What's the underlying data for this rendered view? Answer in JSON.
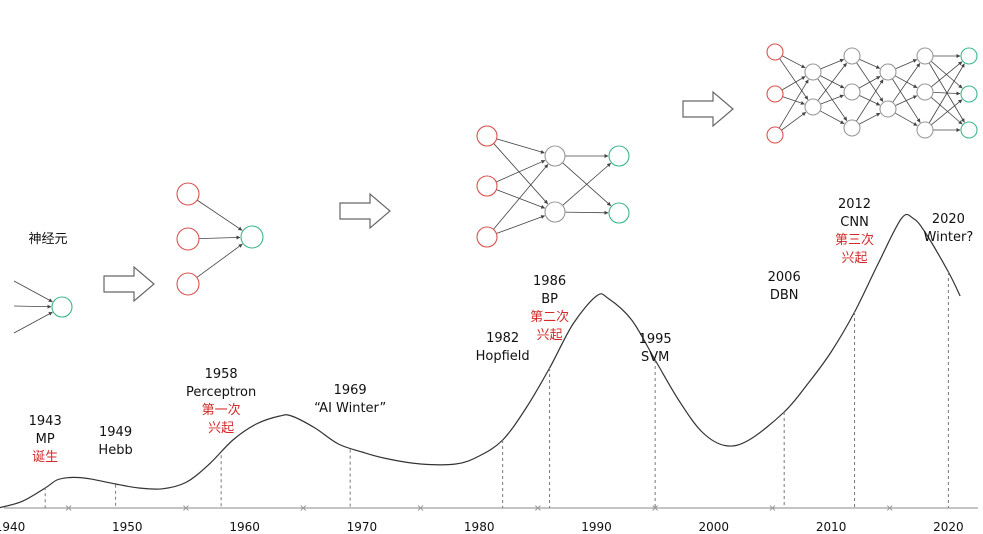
{
  "chart_data": {
    "type": "line",
    "title": "",
    "xlabel": "",
    "ylabel": "",
    "xlim": [
      1940,
      2022
    ],
    "x_ticks": [
      1940,
      1950,
      1960,
      1970,
      1980,
      1990,
      2000,
      2010,
      2020
    ],
    "series": [
      {
        "x": [
          1939,
          1941,
          1943,
          1944,
          1945,
          1946,
          1947,
          1949,
          1951,
          1953,
          1955,
          1957,
          1959,
          1961,
          1963,
          1964,
          1966,
          1968,
          1970,
          1972,
          1975,
          1978,
          1980,
          1982,
          1984,
          1986,
          1988,
          1990,
          1991,
          1993,
          1995,
          1997,
          1999,
          2001,
          2003,
          2006,
          2008,
          2010,
          2012,
          2014,
          2016,
          2017,
          2018,
          2020,
          2021
        ],
        "values": [
          0.0,
          0.08,
          0.25,
          0.35,
          0.38,
          0.38,
          0.36,
          0.3,
          0.25,
          0.24,
          0.32,
          0.55,
          0.85,
          1.05,
          1.15,
          1.15,
          1.0,
          0.8,
          0.7,
          0.62,
          0.55,
          0.55,
          0.65,
          0.85,
          1.25,
          1.75,
          2.3,
          2.65,
          2.62,
          2.35,
          1.85,
          1.35,
          0.95,
          0.78,
          0.85,
          1.2,
          1.55,
          1.95,
          2.45,
          3.05,
          3.62,
          3.62,
          3.45,
          2.95,
          2.65
        ]
      }
    ],
    "events": [
      {
        "year": 1943,
        "value": 0.26,
        "lines": [
          "1943",
          "MP"
        ],
        "highlight": [
          "诞生"
        ]
      },
      {
        "year": 1949,
        "value": 0.29,
        "lines": [
          "1949",
          "Hebb"
        ],
        "highlight": []
      },
      {
        "year": 1958,
        "value": 0.66,
        "lines": [
          "1958",
          "Perceptron"
        ],
        "highlight": [
          "第一次",
          "兴起"
        ]
      },
      {
        "year": 1969,
        "value": 0.73,
        "lines": [
          "1969",
          "“AI Winter”"
        ],
        "highlight": []
      },
      {
        "year": 1982,
        "value": 0.85,
        "lines": [
          "1982",
          "Hopfield"
        ],
        "highlight": []
      },
      {
        "year": 1986,
        "value": 1.75,
        "lines": [
          "1986",
          "BP"
        ],
        "highlight": [
          "第二次",
          "兴起"
        ]
      },
      {
        "year": 1995,
        "value": 1.85,
        "lines": [
          "1995",
          "SVM"
        ],
        "highlight": []
      },
      {
        "year": 2006,
        "value": 1.2,
        "lines": [
          "2006",
          "DBN"
        ],
        "highlight": []
      },
      {
        "year": 2012,
        "value": 2.45,
        "lines": [
          "2012",
          "CNN"
        ],
        "highlight": [
          "第三次",
          "兴起"
        ]
      },
      {
        "year": 2020,
        "value": 2.95,
        "lines": [
          "2020",
          "Winter?"
        ],
        "highlight": []
      }
    ]
  },
  "illustrations": {
    "neuron_label": "神经元",
    "stages": [
      "neuron",
      "perceptron",
      "single-hidden-layer-network",
      "deep-network"
    ]
  },
  "colors": {
    "curve": "#333333",
    "highlight_text": "#d42a2a",
    "input_node": "#d9534f",
    "output_node": "#3cb88a",
    "hidden_node": "#999999",
    "arrow": "#666666"
  }
}
